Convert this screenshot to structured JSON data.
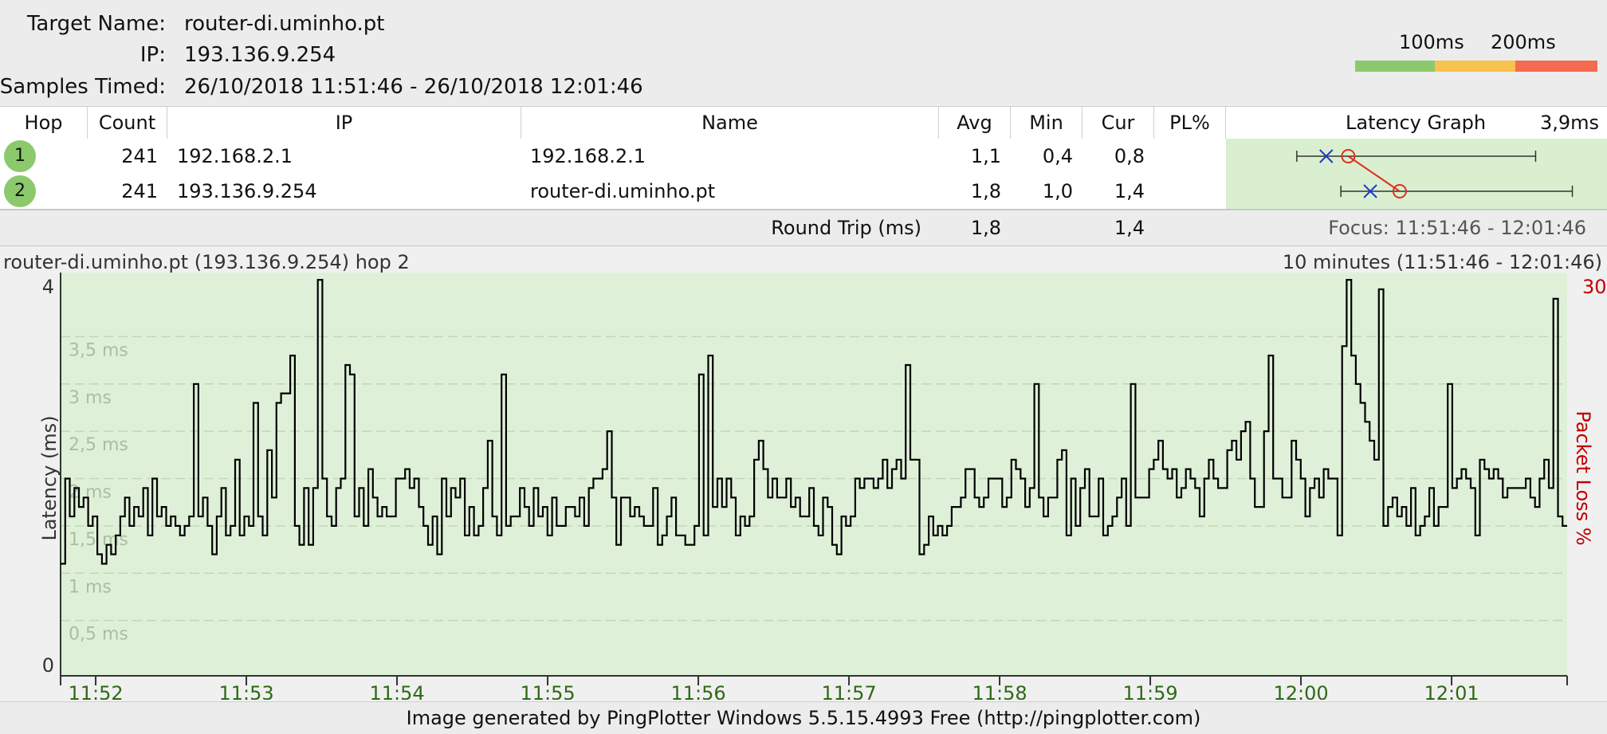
{
  "header": {
    "target_label": "Target Name:",
    "target_value": "router-di.uminho.pt",
    "ip_label": "IP:",
    "ip_value": "193.136.9.254",
    "samples_label": "Samples Timed:",
    "samples_value": "26/10/2018 11:51:46 - 26/10/2018 12:01:46",
    "scale": {
      "label_100": "100ms",
      "label_200": "200ms",
      "colors": [
        "#8cc96c",
        "#f9c14f",
        "#f56b4f"
      ]
    }
  },
  "table": {
    "columns": [
      "Hop",
      "Count",
      "IP",
      "Name",
      "Avg",
      "Min",
      "Cur",
      "PL%",
      "Latency Graph"
    ],
    "graph_scale": "3,9ms",
    "rows": [
      {
        "hop": "1",
        "count": "241",
        "ip": "192.168.2.1",
        "name": "192.168.2.1",
        "avg": "1,1",
        "min": "0,4",
        "cur": "0,8",
        "pl": ""
      },
      {
        "hop": "2",
        "count": "241",
        "ip": "193.136.9.254",
        "name": "router-di.uminho.pt",
        "avg": "1,8",
        "min": "1,0",
        "cur": "1,4",
        "pl": ""
      }
    ],
    "round_trip_label": "Round Trip (ms)",
    "round_trip_avg": "1,8",
    "round_trip_cur": "1,4",
    "focus": "Focus: 11:51:46 - 12:01:46",
    "hop_colors": {
      "badge": "#8cc96c",
      "graph_bg": "#d9efcf"
    }
  },
  "chart_title": "router-di.uminho.pt (193.136.9.254) hop 2",
  "chart_range": "10 minutes (11:51:46 - 12:01:46)",
  "footer": "Image generated by PingPlotter Windows 5.5.15.4993 Free (http://pingplotter.com)",
  "chart_data": {
    "type": "line",
    "title": "router-di.uminho.pt (193.136.9.254) hop 2",
    "ylabel": "Latency (ms)",
    "y2label": "Packet Loss %",
    "ylim": [
      0,
      4
    ],
    "y2_top_label": "30",
    "y_tick_labels": [
      "4",
      "0"
    ],
    "y_grid_labels": [
      "3,5 ms",
      "3 ms",
      "2,5 ms",
      "2 ms",
      "1,5 ms",
      "1 ms",
      "0,5 ms"
    ],
    "y_grid_values": [
      3.5,
      3.0,
      2.5,
      2.0,
      1.5,
      1.0,
      0.5
    ],
    "xlim": [
      "11:51:46",
      "12:01:46"
    ],
    "x_tick_labels": [
      "11:52",
      "11:53",
      "11:54",
      "11:55",
      "11:56",
      "11:57",
      "11:58",
      "11:59",
      "12:00",
      "12:01"
    ],
    "x_tick_minutes": [
      0.233,
      1.233,
      2.233,
      3.233,
      4.233,
      5.233,
      6.233,
      7.233,
      8.233,
      9.233
    ],
    "background_color": "#dff0d8",
    "line_color": "#000000",
    "series": [
      {
        "values": [
          1.1,
          2.0,
          1.6,
          1.9,
          1.7,
          1.8,
          1.5,
          1.6,
          1.2,
          1.1,
          1.3,
          1.2,
          1.4,
          1.6,
          1.8,
          1.5,
          1.7,
          1.6,
          1.9,
          1.4,
          2.0,
          1.6,
          1.7,
          1.5,
          1.6,
          1.5,
          1.4,
          1.5,
          1.6,
          3.0,
          1.6,
          1.8,
          1.5,
          1.2,
          1.6,
          1.9,
          1.4,
          1.5,
          2.2,
          1.4,
          1.6,
          1.5,
          2.8,
          1.6,
          1.4,
          2.3,
          1.8,
          2.8,
          2.9,
          2.9,
          3.3,
          1.5,
          1.3,
          1.9,
          1.3,
          1.9,
          4.1,
          2.0,
          1.6,
          1.5,
          1.9,
          2.0,
          3.2,
          3.1,
          1.6,
          1.9,
          1.5,
          2.1,
          1.8,
          1.6,
          1.7,
          1.6,
          1.6,
          2.0,
          2.0,
          2.1,
          1.9,
          2.0,
          1.7,
          1.5,
          1.3,
          1.6,
          1.2,
          2.0,
          1.6,
          1.9,
          1.8,
          2.0,
          1.4,
          1.7,
          1.4,
          1.5,
          1.9,
          2.4,
          1.6,
          1.4,
          3.1,
          1.5,
          1.6,
          1.6,
          1.9,
          1.7,
          1.5,
          1.9,
          1.6,
          1.7,
          1.4,
          1.8,
          1.5,
          1.5,
          1.7,
          1.7,
          1.6,
          1.8,
          1.5,
          1.9,
          2.0,
          2.0,
          2.1,
          2.5,
          1.8,
          1.3,
          1.8,
          1.8,
          1.6,
          1.7,
          1.6,
          1.5,
          1.5,
          1.9,
          1.3,
          1.4,
          1.6,
          1.8,
          1.4,
          1.4,
          1.3,
          1.3,
          1.5,
          3.1,
          1.4,
          3.3,
          1.7,
          2.0,
          1.7,
          2.0,
          1.8,
          1.4,
          1.6,
          1.5,
          1.6,
          2.2,
          2.4,
          2.1,
          1.8,
          2.0,
          1.8,
          1.8,
          2.0,
          1.7,
          1.8,
          1.6,
          1.6,
          1.9,
          1.5,
          1.4,
          1.8,
          1.7,
          1.3,
          1.2,
          1.6,
          1.5,
          1.6,
          2.0,
          1.9,
          2.0,
          2.0,
          1.9,
          2.0,
          2.2,
          1.9,
          2.1,
          2.2,
          2.0,
          3.2,
          2.2,
          2.2,
          1.2,
          1.3,
          1.6,
          1.4,
          1.5,
          1.4,
          1.5,
          1.7,
          1.7,
          1.8,
          2.1,
          2.1,
          1.8,
          1.7,
          1.8,
          2.0,
          2.0,
          2.0,
          1.7,
          1.8,
          2.2,
          2.1,
          2.0,
          1.7,
          1.9,
          3.0,
          1.8,
          1.6,
          1.8,
          1.8,
          2.2,
          2.3,
          1.4,
          2.0,
          1.5,
          1.9,
          2.1,
          1.6,
          1.6,
          2.0,
          1.4,
          1.5,
          1.6,
          1.8,
          2.0,
          1.5,
          3.0,
          1.8,
          1.8,
          1.8,
          2.1,
          2.2,
          2.4,
          2.1,
          2.0,
          2.1,
          1.8,
          1.9,
          2.1,
          2.0,
          1.9,
          1.6,
          2.0,
          2.2,
          2.0,
          1.9,
          1.9,
          2.3,
          2.4,
          2.2,
          2.5,
          2.6,
          2.0,
          1.7,
          1.7,
          2.5,
          3.3,
          2.0,
          2.0,
          1.8,
          1.8,
          2.4,
          2.2,
          2.0,
          1.6,
          1.9,
          2.0,
          1.8,
          2.1,
          2.0,
          2.0,
          1.4,
          3.4,
          4.1,
          3.3,
          3.0,
          2.8,
          2.6,
          2.4,
          2.2,
          4.0,
          1.5,
          1.7,
          1.8,
          1.6,
          1.7,
          1.5,
          1.9,
          1.4,
          1.5,
          1.6,
          1.9,
          1.5,
          1.7,
          1.7,
          3.0,
          1.9,
          2.0,
          2.1,
          2.0,
          1.9,
          1.4,
          2.2,
          2.1,
          2.0,
          2.1,
          2.0,
          1.8,
          1.9,
          1.9,
          1.9,
          1.9,
          2.0,
          1.8,
          1.7,
          2.0,
          2.2,
          1.9,
          3.9,
          1.6,
          1.5
        ]
      }
    ]
  },
  "hop_graph": {
    "scale_max_ms": 3.9,
    "hops": [
      {
        "hop": "1",
        "min": 0.4,
        "avg": 1.1,
        "cur": 0.8,
        "max": 3.65
      },
      {
        "hop": "2",
        "min": 1.0,
        "avg": 1.8,
        "cur": 1.4,
        "max": 4.15
      }
    ]
  }
}
